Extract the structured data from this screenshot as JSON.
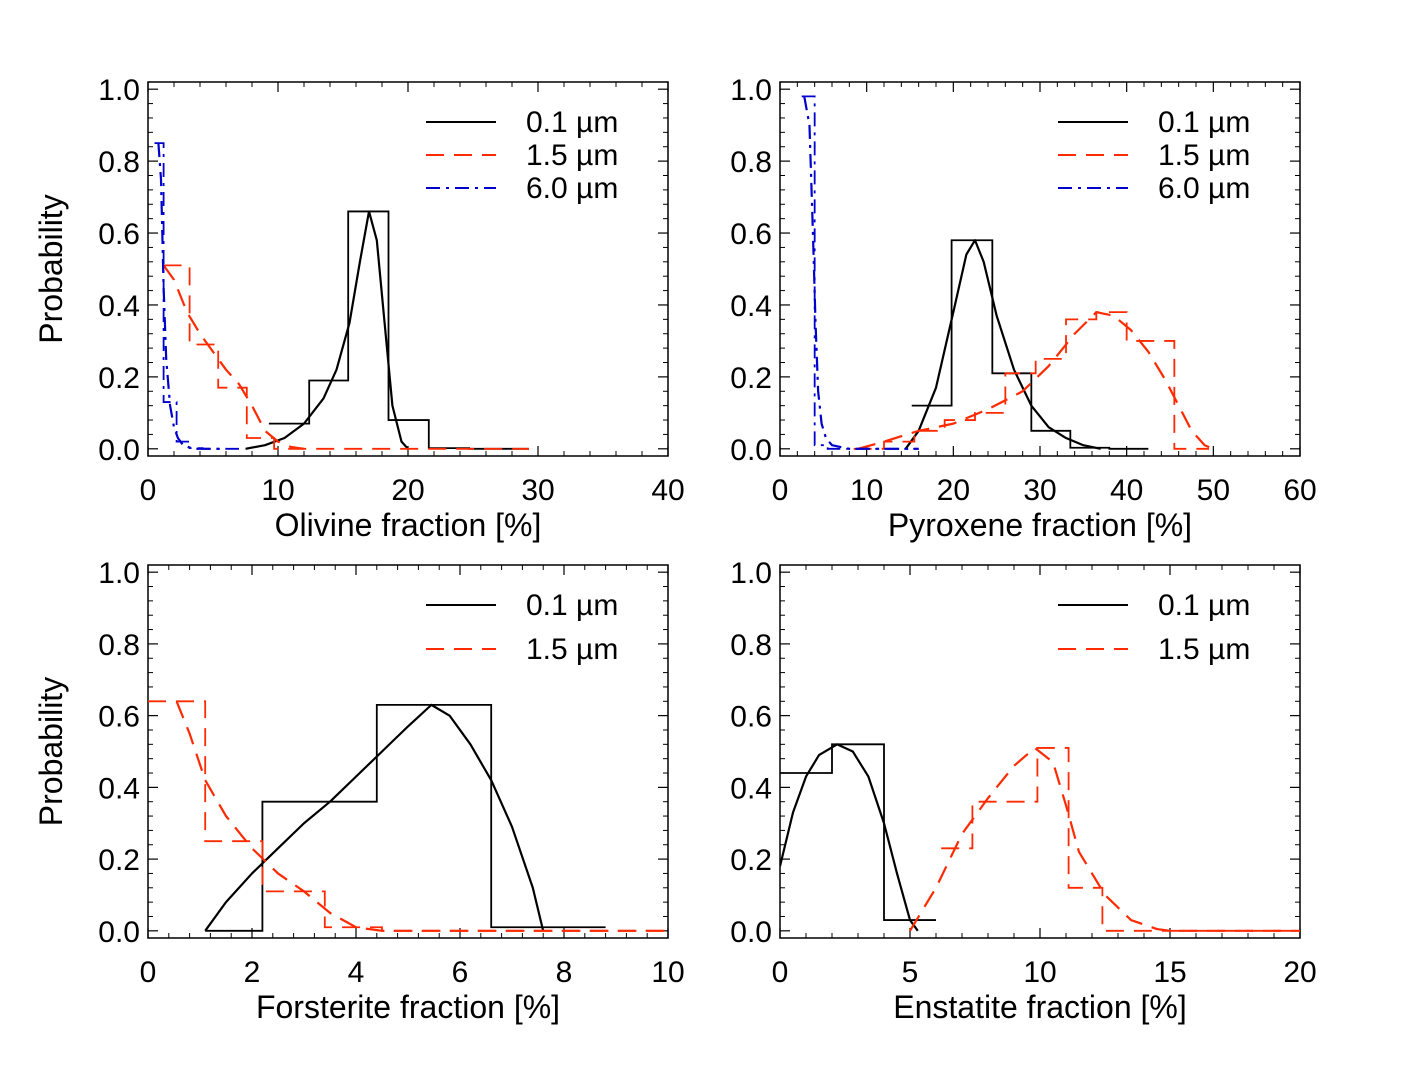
{
  "chart_data": [
    {
      "type": "line",
      "xlabel": "Olivine fraction [%]",
      "ylabel": "Probability",
      "xlim": [
        0,
        40
      ],
      "ylim": [
        -0.02,
        1.02
      ],
      "xticks": [
        "0",
        "10",
        "20",
        "30",
        "40"
      ],
      "yticks": [
        "0.0",
        "0.2",
        "0.4",
        "0.6",
        "0.8",
        "1.0"
      ],
      "legend_position": "top-right",
      "series": [
        {
          "name": "0.1 µm",
          "color": "#000000",
          "style": "solid",
          "hist_edges": [
            9.3,
            12.4,
            15.4,
            18.5,
            21.6,
            24.7,
            27.8,
            29.3
          ],
          "hist_values": [
            0.07,
            0.19,
            0.66,
            0.08,
            0.002,
            0.0,
            0.0
          ],
          "curve": [
            [
              7.5,
              0.0
            ],
            [
              9.0,
              0.01
            ],
            [
              10.5,
              0.03
            ],
            [
              12.0,
              0.07
            ],
            [
              13.5,
              0.14
            ],
            [
              14.5,
              0.22
            ],
            [
              15.5,
              0.35
            ],
            [
              16.3,
              0.52
            ],
            [
              17.0,
              0.66
            ],
            [
              17.6,
              0.58
            ],
            [
              18.2,
              0.35
            ],
            [
              18.8,
              0.12
            ],
            [
              19.5,
              0.02
            ],
            [
              20.0,
              0.0
            ]
          ]
        },
        {
          "name": "1.5 µm",
          "color": "#ff2a00",
          "style": "dashed",
          "hist_edges": [
            1.2,
            3.2,
            5.4,
            7.6,
            9.7,
            11.9,
            14.0,
            16.2,
            29.3
          ],
          "hist_values": [
            0.51,
            0.29,
            0.17,
            0.03,
            0.0,
            0.0,
            0.0,
            0.0
          ],
          "curve": [
            [
              1.2,
              0.51
            ],
            [
              2.0,
              0.47
            ],
            [
              3.0,
              0.38
            ],
            [
              4.0,
              0.32
            ],
            [
              5.0,
              0.27
            ],
            [
              6.0,
              0.22
            ],
            [
              7.0,
              0.18
            ],
            [
              8.0,
              0.12
            ],
            [
              9.0,
              0.05
            ],
            [
              10.0,
              0.02
            ],
            [
              11.0,
              0.005
            ],
            [
              12.0,
              0.0
            ]
          ]
        },
        {
          "name": "6.0 µm",
          "color": "#0000cc",
          "style": "dashdot",
          "hist_edges": [
            0.5,
            1.2,
            2.2,
            3.2,
            4.2,
            5.2,
            7.0
          ],
          "hist_values": [
            0.85,
            0.13,
            0.02,
            0.002,
            0.0,
            0.0
          ],
          "curve": [
            [
              0.8,
              0.85
            ],
            [
              1.0,
              0.75
            ],
            [
              1.2,
              0.45
            ],
            [
              1.4,
              0.25
            ],
            [
              1.7,
              0.12
            ],
            [
              2.0,
              0.06
            ],
            [
              2.3,
              0.03
            ],
            [
              2.7,
              0.01
            ],
            [
              3.5,
              0.0
            ],
            [
              6.0,
              0.0
            ]
          ]
        }
      ]
    },
    {
      "type": "line",
      "xlabel": "Pyroxene fraction [%]",
      "ylabel": "",
      "xlim": [
        0,
        60
      ],
      "ylim": [
        -0.02,
        1.02
      ],
      "xticks": [
        "0",
        "10",
        "20",
        "30",
        "40",
        "50",
        "60"
      ],
      "yticks": [
        "0.0",
        "0.2",
        "0.4",
        "0.6",
        "0.8",
        "1.0"
      ],
      "legend_position": "top-right",
      "series": [
        {
          "name": "0.1 µm",
          "color": "#000000",
          "style": "solid",
          "hist_edges": [
            15.2,
            19.8,
            24.5,
            29.0,
            33.5,
            38.0,
            42.5
          ],
          "hist_values": [
            0.12,
            0.58,
            0.21,
            0.05,
            0.003,
            0.0
          ],
          "curve": [
            [
              14.5,
              0.0
            ],
            [
              16.0,
              0.05
            ],
            [
              18.0,
              0.17
            ],
            [
              20.0,
              0.38
            ],
            [
              21.5,
              0.54
            ],
            [
              22.5,
              0.58
            ],
            [
              23.5,
              0.52
            ],
            [
              25.0,
              0.37
            ],
            [
              27.0,
              0.22
            ],
            [
              29.0,
              0.12
            ],
            [
              31.0,
              0.06
            ],
            [
              33.0,
              0.03
            ],
            [
              35.0,
              0.01
            ],
            [
              37.0,
              0.0
            ]
          ]
        },
        {
          "name": "1.5 µm",
          "color": "#ff2a00",
          "style": "dashed",
          "hist_edges": [
            8.5,
            12.0,
            15.5,
            19.0,
            22.5,
            26.0,
            29.5,
            33.0,
            36.5,
            40.0,
            45.5,
            49.5
          ],
          "hist_values": [
            0.0,
            0.02,
            0.05,
            0.08,
            0.1,
            0.21,
            0.25,
            0.36,
            0.38,
            0.3,
            0.0
          ],
          "curve": [
            [
              9.0,
              0.0
            ],
            [
              12.0,
              0.02
            ],
            [
              16.0,
              0.05
            ],
            [
              20.0,
              0.07
            ],
            [
              24.0,
              0.11
            ],
            [
              28.0,
              0.16
            ],
            [
              31.0,
              0.23
            ],
            [
              34.0,
              0.32
            ],
            [
              36.5,
              0.38
            ],
            [
              38.5,
              0.37
            ],
            [
              40.5,
              0.33
            ],
            [
              42.5,
              0.27
            ],
            [
              44.5,
              0.19
            ],
            [
              46.0,
              0.12
            ],
            [
              47.5,
              0.05
            ],
            [
              49.0,
              0.01
            ],
            [
              50.0,
              0.0
            ]
          ]
        },
        {
          "name": "6.0 µm",
          "color": "#0000cc",
          "style": "dashdot",
          "hist_edges": [
            2.5,
            4.0,
            5.5,
            7.0,
            9.0,
            11.0,
            16.0
          ],
          "hist_values": [
            0.98,
            0.01,
            0.0,
            0.0,
            0.0,
            0.0
          ],
          "curve": [
            [
              2.8,
              0.98
            ],
            [
              3.4,
              0.9
            ],
            [
              3.8,
              0.6
            ],
            [
              4.1,
              0.35
            ],
            [
              4.4,
              0.16
            ],
            [
              4.8,
              0.07
            ],
            [
              5.3,
              0.03
            ],
            [
              6.0,
              0.01
            ],
            [
              8.0,
              0.0
            ],
            [
              16.0,
              0.0
            ]
          ]
        }
      ]
    },
    {
      "type": "line",
      "xlabel": "Forsterite fraction [%]",
      "ylabel": "Probability",
      "xlim": [
        0,
        10
      ],
      "ylim": [
        -0.02,
        1.02
      ],
      "xticks": [
        "0",
        "2",
        "4",
        "6",
        "8",
        "10"
      ],
      "yticks": [
        "0.0",
        "0.2",
        "0.4",
        "0.6",
        "0.8",
        "1.0"
      ],
      "legend_position": "top-right",
      "series": [
        {
          "name": "0.1 µm",
          "color": "#000000",
          "style": "solid",
          "hist_edges": [
            1.1,
            2.2,
            4.4,
            6.6,
            8.8
          ],
          "hist_values": [
            0.0,
            0.36,
            0.63,
            0.01
          ],
          "curve": [
            [
              1.1,
              0.0
            ],
            [
              1.5,
              0.08
            ],
            [
              2.0,
              0.16
            ],
            [
              2.5,
              0.23
            ],
            [
              3.0,
              0.3
            ],
            [
              3.5,
              0.36
            ],
            [
              4.0,
              0.43
            ],
            [
              4.5,
              0.5
            ],
            [
              5.0,
              0.57
            ],
            [
              5.45,
              0.63
            ],
            [
              5.8,
              0.6
            ],
            [
              6.2,
              0.52
            ],
            [
              6.6,
              0.42
            ],
            [
              7.0,
              0.29
            ],
            [
              7.4,
              0.12
            ],
            [
              7.6,
              0.0
            ]
          ]
        },
        {
          "name": "1.5 µm",
          "color": "#ff2a00",
          "style": "dashed",
          "hist_edges": [
            0.0,
            1.1,
            2.2,
            3.4,
            4.5,
            5.6,
            6.8,
            7.9,
            10.0
          ],
          "hist_values": [
            0.64,
            0.25,
            0.11,
            0.01,
            0.0,
            0.0,
            0.0,
            0.0
          ],
          "curve": [
            [
              0.55,
              0.64
            ],
            [
              0.8,
              0.55
            ],
            [
              1.1,
              0.42
            ],
            [
              1.5,
              0.32
            ],
            [
              2.0,
              0.23
            ],
            [
              2.5,
              0.16
            ],
            [
              3.0,
              0.11
            ],
            [
              3.5,
              0.05
            ],
            [
              4.0,
              0.01
            ],
            [
              4.5,
              0.0
            ],
            [
              10.0,
              0.0
            ]
          ]
        }
      ]
    },
    {
      "type": "line",
      "xlabel": "Enstatite fraction [%]",
      "ylabel": "",
      "xlim": [
        0,
        20
      ],
      "ylim": [
        -0.02,
        1.02
      ],
      "xticks": [
        "0",
        "5",
        "10",
        "15",
        "20"
      ],
      "yticks": [
        "0.0",
        "0.2",
        "0.4",
        "0.6",
        "0.8",
        "1.0"
      ],
      "legend_position": "top-right",
      "series": [
        {
          "name": "0.1 µm",
          "color": "#000000",
          "style": "solid",
          "hist_edges": [
            0.0,
            2.0,
            4.0,
            6.0
          ],
          "hist_values": [
            0.44,
            0.52,
            0.03
          ],
          "curve": [
            [
              0.0,
              0.18
            ],
            [
              0.5,
              0.33
            ],
            [
              1.0,
              0.43
            ],
            [
              1.5,
              0.49
            ],
            [
              2.2,
              0.52
            ],
            [
              2.8,
              0.5
            ],
            [
              3.4,
              0.43
            ],
            [
              4.0,
              0.3
            ],
            [
              4.5,
              0.16
            ],
            [
              5.0,
              0.03
            ],
            [
              5.3,
              0.0
            ]
          ]
        },
        {
          "name": "1.5 µm",
          "color": "#ff2a00",
          "style": "dashed",
          "hist_edges": [
            6.2,
            7.4,
            8.7,
            9.9,
            11.1,
            12.4,
            13.6,
            20.0
          ],
          "hist_values": [
            0.23,
            0.36,
            0.36,
            0.51,
            0.12,
            0.0,
            0.0
          ],
          "curve": [
            [
              5.0,
              0.0
            ],
            [
              6.0,
              0.12
            ],
            [
              7.0,
              0.27
            ],
            [
              8.0,
              0.37
            ],
            [
              9.0,
              0.46
            ],
            [
              9.8,
              0.51
            ],
            [
              10.5,
              0.47
            ],
            [
              11.0,
              0.35
            ],
            [
              11.5,
              0.22
            ],
            [
              12.5,
              0.1
            ],
            [
              13.5,
              0.03
            ],
            [
              14.5,
              0.005
            ],
            [
              15.0,
              0.0
            ],
            [
              20.0,
              0.0
            ]
          ]
        }
      ]
    }
  ]
}
